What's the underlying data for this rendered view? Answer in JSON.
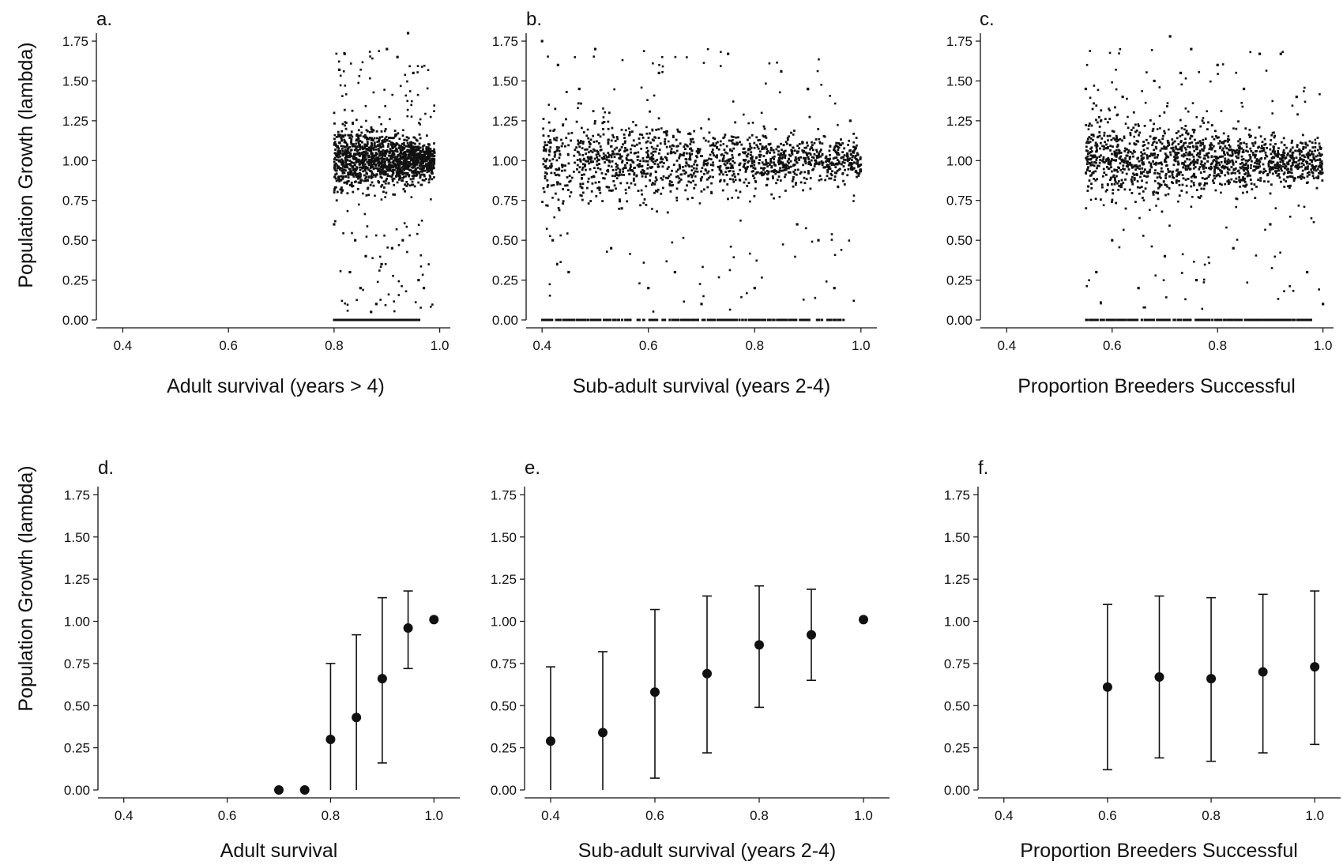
{
  "figure": {
    "ylabel": "Population Growth (lambda)",
    "colors": {
      "ink": "#111111",
      "background": "#ffffff"
    }
  },
  "chart_data": [
    {
      "id": "a",
      "panel_label": "a.",
      "type": "scatter",
      "xlabel": "Adult survival (years > 4)",
      "ylabel": "Population Growth (lambda)",
      "xlim": [
        0.35,
        1.02
      ],
      "ylim": [
        0,
        1.78
      ],
      "xticks": [
        "0.4",
        "0.6",
        "0.8",
        "1.0"
      ],
      "yticks": [
        "0.00",
        "0.25",
        "0.50",
        "0.75",
        "1.00",
        "1.25",
        "1.50",
        "1.75"
      ],
      "grid": false,
      "x_range": [
        0.8,
        0.99
      ],
      "y_main_band": 1.0,
      "y_spread": 0.05,
      "extinct_band": 0.0,
      "x_points": [
        0.8,
        0.81,
        0.82,
        0.83,
        0.84,
        0.85,
        0.86,
        0.87,
        0.88,
        0.89,
        0.9,
        0.91,
        0.92,
        0.93,
        0.94,
        0.95,
        0.96,
        0.97,
        0.98,
        0.99
      ],
      "y_points": [
        0.6,
        1.57,
        1.67,
        0.3,
        0.5,
        0.2,
        0.4,
        0.05,
        0.1,
        0.35,
        1.7,
        0.45,
        1.65,
        0.5,
        1.8,
        1.55,
        0.25,
        0.2,
        1.1,
        1.05
      ]
    },
    {
      "id": "b",
      "panel_label": "b.",
      "type": "scatter",
      "xlabel": "Sub-adult survival (years 2-4)",
      "ylabel": "",
      "xlim": [
        0.37,
        1.03
      ],
      "ylim": [
        0,
        1.78
      ],
      "xticks": [
        "0.4",
        "0.6",
        "0.8",
        "1.0"
      ],
      "yticks": [
        "0.00",
        "0.25",
        "0.50",
        "0.75",
        "1.00",
        "1.25",
        "1.50",
        "1.75"
      ],
      "grid": false,
      "x_range": [
        0.4,
        1.0
      ],
      "y_main_band": 1.0,
      "y_spread": 0.06,
      "extinct_band": 0.0,
      "x_points": [
        0.4,
        0.42,
        0.43,
        0.45,
        0.47,
        0.5,
        0.53,
        0.55,
        0.6,
        0.62,
        0.65,
        0.7,
        0.75,
        0.8,
        0.85,
        0.88,
        0.9,
        0.92,
        0.95,
        0.98
      ],
      "y_points": [
        1.75,
        0.5,
        1.6,
        0.3,
        1.45,
        1.7,
        0.45,
        0.7,
        0.2,
        1.55,
        0.3,
        0.1,
        1.67,
        0.2,
        1.56,
        0.6,
        1.45,
        0.5,
        0.2,
        1.25
      ]
    },
    {
      "id": "c",
      "panel_label": "c.",
      "type": "scatter",
      "xlabel": "Proportion Breeders Successful",
      "ylabel": "",
      "xlim": [
        0.35,
        1.02
      ],
      "ylim": [
        0,
        1.78
      ],
      "xticks": [
        "0.4",
        "0.6",
        "0.8",
        "1.0"
      ],
      "yticks": [
        "0.00",
        "0.25",
        "0.50",
        "0.75",
        "1.00",
        "1.25",
        "1.50",
        "1.75"
      ],
      "grid": false,
      "x_range": [
        0.55,
        1.0
      ],
      "y_main_band": 1.0,
      "y_spread": 0.06,
      "extinct_band": 0.0,
      "x_points": [
        0.55,
        0.57,
        0.6,
        0.62,
        0.65,
        0.68,
        0.7,
        0.71,
        0.73,
        0.75,
        0.76,
        0.8,
        0.83,
        0.85,
        0.88,
        0.9,
        0.92,
        0.95,
        0.97,
        1.0
      ],
      "y_points": [
        1.45,
        0.3,
        0.5,
        1.4,
        0.2,
        1.5,
        0.4,
        1.78,
        1.55,
        1.7,
        0.25,
        1.6,
        0.45,
        1.45,
        1.67,
        0.6,
        1.67,
        1.4,
        0.3,
        0.1
      ]
    },
    {
      "id": "d",
      "panel_label": "d.",
      "type": "scatter",
      "error_bars": true,
      "xlabel": "Adult survival",
      "ylabel": "Population Growth (lambda)",
      "xlim": [
        0.35,
        1.05
      ],
      "ylim": [
        0,
        1.78
      ],
      "xticks": [
        "0.4",
        "0.6",
        "0.8",
        "1.0"
      ],
      "yticks": [
        "0.00",
        "0.25",
        "0.50",
        "0.75",
        "1.00",
        "1.25",
        "1.50",
        "1.75"
      ],
      "grid": false,
      "x": [
        0.7,
        0.75,
        0.8,
        0.85,
        0.9,
        0.95,
        1.0
      ],
      "y": [
        0.0,
        0.0,
        0.3,
        0.43,
        0.66,
        0.96,
        1.01
      ],
      "y_low": [
        0.0,
        0.0,
        0.0,
        0.0,
        0.16,
        0.72,
        1.0
      ],
      "y_high": [
        0.0,
        0.0,
        0.75,
        0.92,
        1.14,
        1.18,
        1.02
      ]
    },
    {
      "id": "e",
      "panel_label": "e.",
      "type": "scatter",
      "error_bars": true,
      "xlabel": "Sub-adult survival (years 2-4)",
      "ylabel": "",
      "xlim": [
        0.35,
        1.05
      ],
      "ylim": [
        0,
        1.78
      ],
      "xticks": [
        "0.4",
        "0.6",
        "0.8",
        "1.0"
      ],
      "yticks": [
        "0.00",
        "0.25",
        "0.50",
        "0.75",
        "1.00",
        "1.25",
        "1.50",
        "1.75"
      ],
      "grid": false,
      "x": [
        0.4,
        0.5,
        0.6,
        0.7,
        0.8,
        0.9,
        1.0
      ],
      "y": [
        0.29,
        0.34,
        0.58,
        0.69,
        0.86,
        0.92,
        1.01
      ],
      "y_low": [
        0.0,
        0.0,
        0.07,
        0.22,
        0.49,
        0.65,
        1.0
      ],
      "y_high": [
        0.73,
        0.82,
        1.07,
        1.15,
        1.21,
        1.19,
        1.02
      ]
    },
    {
      "id": "f",
      "panel_label": "f.",
      "type": "scatter",
      "error_bars": true,
      "xlabel": "Proportion Breeders Successful",
      "ylabel": "",
      "xlim": [
        0.35,
        1.05
      ],
      "ylim": [
        0,
        1.78
      ],
      "xticks": [
        "0.4",
        "0.6",
        "0.8",
        "1.0"
      ],
      "yticks": [
        "0.00",
        "0.25",
        "0.50",
        "0.75",
        "1.00",
        "1.25",
        "1.50",
        "1.75"
      ],
      "grid": false,
      "x": [
        0.6,
        0.7,
        0.8,
        0.9,
        1.0
      ],
      "y": [
        0.61,
        0.67,
        0.66,
        0.7,
        0.73
      ],
      "y_low": [
        0.12,
        0.19,
        0.17,
        0.22,
        0.27
      ],
      "y_high": [
        1.1,
        1.15,
        1.14,
        1.16,
        1.18
      ]
    }
  ]
}
